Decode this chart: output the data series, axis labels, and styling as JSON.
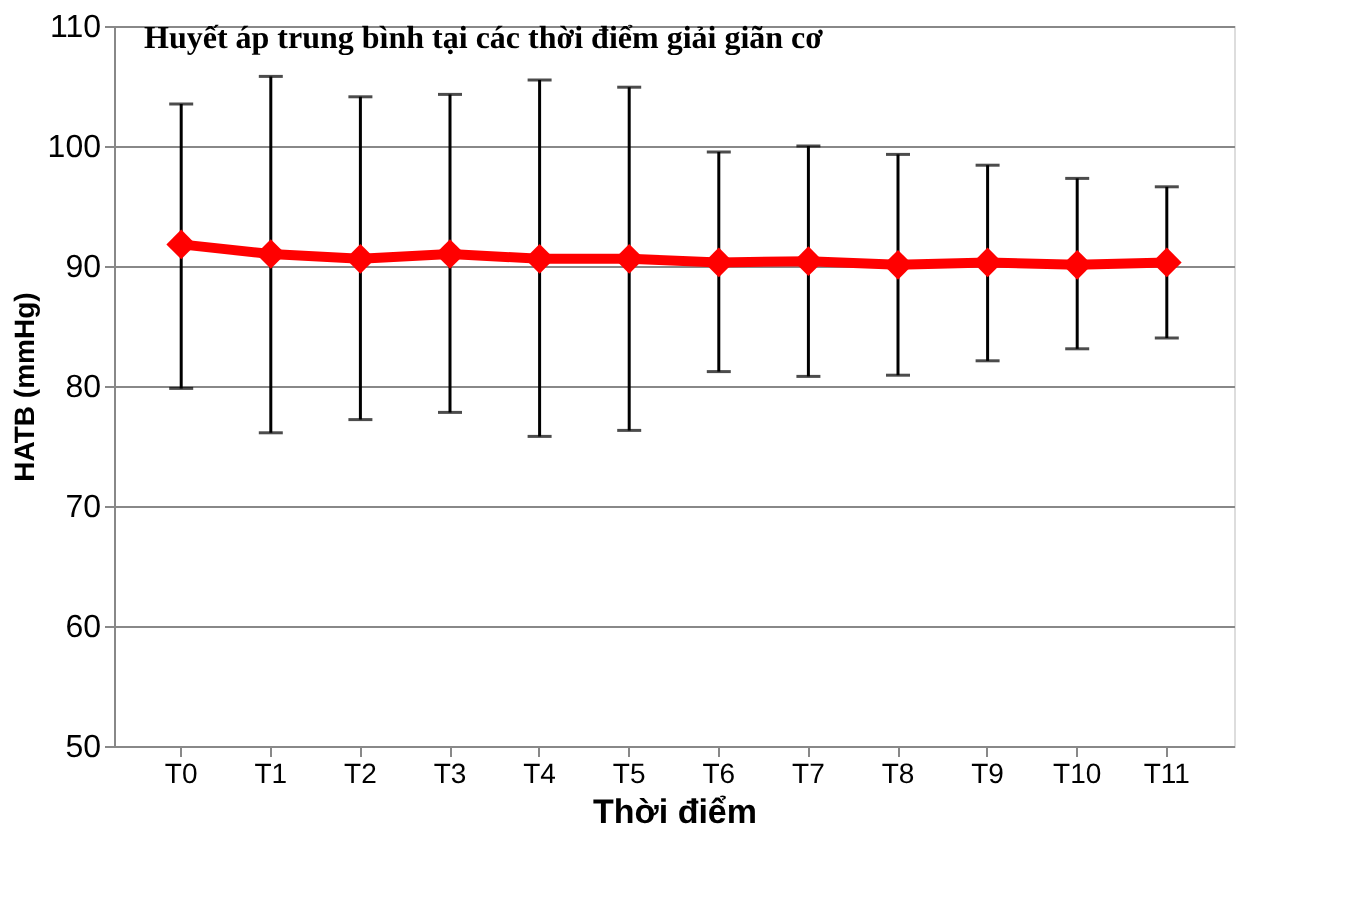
{
  "chart_data": {
    "type": "line",
    "title": "Huyết áp trung bình  tại các thời điểm giải giãn cơ",
    "xlabel": "Thời điểm",
    "ylabel": "HATB (mmHg)",
    "categories": [
      "T0",
      "T1",
      "T2",
      "T3",
      "T4",
      "T5",
      "T6",
      "T7",
      "T8",
      "T9",
      "T10",
      "T11"
    ],
    "series": [
      {
        "color": "#ff0000",
        "values": [
          91.8,
          91.0,
          90.6,
          91.0,
          90.6,
          90.6,
          90.3,
          90.4,
          90.1,
          90.3,
          90.1,
          90.3
        ],
        "errors": [
          [
            79.8,
            103.5
          ],
          [
            76.1,
            105.8
          ],
          [
            77.2,
            104.1
          ],
          [
            77.8,
            104.3
          ],
          [
            75.8,
            105.5
          ],
          [
            76.3,
            104.9
          ],
          [
            81.2,
            99.5
          ],
          [
            80.8,
            100.0
          ],
          [
            80.9,
            99.3
          ],
          [
            82.1,
            98.4
          ],
          [
            83.1,
            97.3
          ],
          [
            84.0,
            96.6
          ]
        ]
      }
    ],
    "ylim": [
      50,
      110
    ],
    "yticks": [
      50,
      60,
      70,
      80,
      90,
      100,
      110
    ],
    "grid": "y",
    "marker": "diamond",
    "line_style": "solid"
  }
}
